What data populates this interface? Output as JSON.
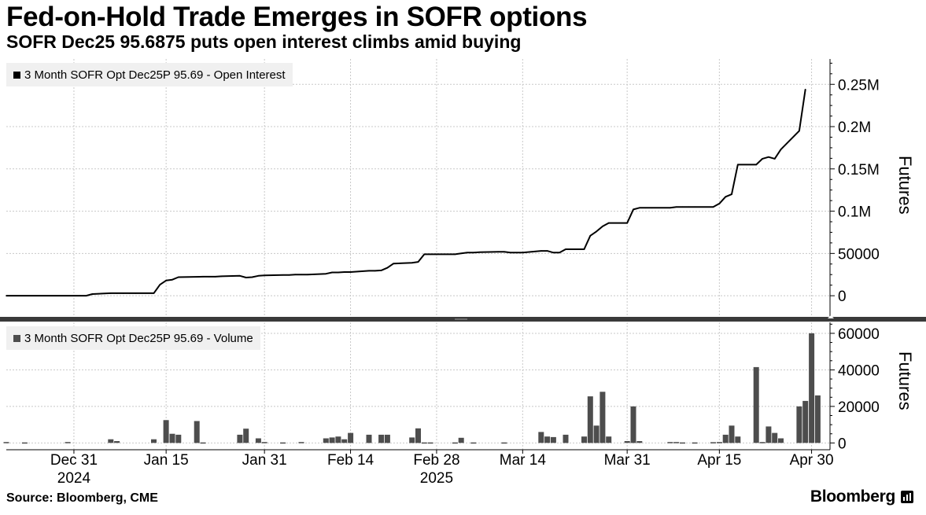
{
  "title": "Fed-on-Hold Trade Emerges in SOFR options",
  "subtitle": "SOFR Dec25 95.6875 puts open interest climbs amid buying",
  "source": "Source: Bloomberg, CME",
  "brand": "Bloomberg",
  "colors": {
    "oi_line": "#000000",
    "volume_bar": "#4d4d4d",
    "grid": "#c8c8c8",
    "legend_bg": "#f0f0f0",
    "separator": "#3a3a3a"
  },
  "chart_data": [
    {
      "type": "line",
      "name": "open-interest",
      "legend": "3 Month SOFR Opt Dec25P 95.69 - Open Interest",
      "ylabel": "Futures",
      "ylim": [
        -25000,
        280000
      ],
      "yticks": [
        0,
        50000,
        100000,
        150000,
        200000,
        250000
      ],
      "ytick_labels": [
        "0",
        "50000",
        "0.1M",
        "0.15M",
        "0.2M",
        "0.25M"
      ],
      "points": [
        [
          "2024-12-20",
          0
        ],
        [
          "2025-01-01",
          0
        ],
        [
          "2025-01-02",
          0
        ],
        [
          "2025-01-03",
          2000
        ],
        [
          "2025-01-06",
          3000
        ],
        [
          "2025-01-07",
          3000
        ],
        [
          "2025-01-08",
          3000
        ],
        [
          "2025-01-09",
          3000
        ],
        [
          "2025-01-10",
          3000
        ],
        [
          "2025-01-13",
          3000
        ],
        [
          "2025-01-14",
          13000
        ],
        [
          "2025-01-15",
          18000
        ],
        [
          "2025-01-16",
          19000
        ],
        [
          "2025-01-17",
          22000
        ],
        [
          "2025-01-21",
          22500
        ],
        [
          "2025-01-22",
          22500
        ],
        [
          "2025-01-23",
          22500
        ],
        [
          "2025-01-24",
          23000
        ],
        [
          "2025-01-27",
          23500
        ],
        [
          "2025-01-28",
          21500
        ],
        [
          "2025-01-29",
          22000
        ],
        [
          "2025-01-30",
          23500
        ],
        [
          "2025-01-31",
          24000
        ],
        [
          "2025-02-03",
          24500
        ],
        [
          "2025-02-04",
          24500
        ],
        [
          "2025-02-05",
          25000
        ],
        [
          "2025-02-06",
          25000
        ],
        [
          "2025-02-07",
          25000
        ],
        [
          "2025-02-10",
          26000
        ],
        [
          "2025-02-11",
          27500
        ],
        [
          "2025-02-12",
          27500
        ],
        [
          "2025-02-13",
          28000
        ],
        [
          "2025-02-14",
          28000
        ],
        [
          "2025-02-17",
          29500
        ],
        [
          "2025-02-18",
          29500
        ],
        [
          "2025-02-19",
          30000
        ],
        [
          "2025-02-20",
          33000
        ],
        [
          "2025-02-21",
          38000
        ],
        [
          "2025-02-24",
          39000
        ],
        [
          "2025-02-25",
          40000
        ],
        [
          "2025-02-26",
          49000
        ],
        [
          "2025-02-27",
          49000
        ],
        [
          "2025-02-28",
          49000
        ],
        [
          "2025-03-03",
          49000
        ],
        [
          "2025-03-04",
          50000
        ],
        [
          "2025-03-05",
          51000
        ],
        [
          "2025-03-06",
          51000
        ],
        [
          "2025-03-07",
          51500
        ],
        [
          "2025-03-10",
          52000
        ],
        [
          "2025-03-11",
          52000
        ],
        [
          "2025-03-12",
          51000
        ],
        [
          "2025-03-13",
          51000
        ],
        [
          "2025-03-14",
          51000
        ],
        [
          "2025-03-17",
          53000
        ],
        [
          "2025-03-18",
          53000
        ],
        [
          "2025-03-19",
          51000
        ],
        [
          "2025-03-20",
          51000
        ],
        [
          "2025-03-21",
          55000
        ],
        [
          "2025-03-24",
          55000
        ],
        [
          "2025-03-25",
          71000
        ],
        [
          "2025-03-26",
          76000
        ],
        [
          "2025-03-27",
          82000
        ],
        [
          "2025-03-28",
          86000
        ],
        [
          "2025-03-31",
          86000
        ],
        [
          "2025-04-01",
          102000
        ],
        [
          "2025-04-02",
          104000
        ],
        [
          "2025-04-03",
          104000
        ],
        [
          "2025-04-04",
          104000
        ],
        [
          "2025-04-07",
          104000
        ],
        [
          "2025-04-08",
          105000
        ],
        [
          "2025-04-09",
          105000
        ],
        [
          "2025-04-10",
          105000
        ],
        [
          "2025-04-11",
          105000
        ],
        [
          "2025-04-14",
          105000
        ],
        [
          "2025-04-15",
          109000
        ],
        [
          "2025-04-16",
          117000
        ],
        [
          "2025-04-17",
          120000
        ],
        [
          "2025-04-18",
          155000
        ],
        [
          "2025-04-21",
          155000
        ],
        [
          "2025-04-22",
          162000
        ],
        [
          "2025-04-23",
          164000
        ],
        [
          "2025-04-24",
          162000
        ],
        [
          "2025-04-25",
          173000
        ],
        [
          "2025-04-28",
          195000
        ],
        [
          "2025-04-29",
          244000
        ]
      ]
    },
    {
      "type": "bar",
      "name": "volume",
      "legend": "3 Month SOFR Opt Dec25P 95.69 - Volume",
      "ylabel": "Futures",
      "ylim": [
        -2000,
        66000
      ],
      "yticks": [
        0,
        20000,
        40000,
        60000
      ],
      "ytick_labels": [
        "0",
        "20000",
        "40000",
        "60000"
      ],
      "points": [
        [
          "2024-12-20",
          500
        ],
        [
          "2024-12-23",
          300
        ],
        [
          "2024-12-30",
          500
        ],
        [
          "2025-01-06",
          2000
        ],
        [
          "2025-01-07",
          1000
        ],
        [
          "2025-01-13",
          2000
        ],
        [
          "2025-01-15",
          12500
        ],
        [
          "2025-01-16",
          5000
        ],
        [
          "2025-01-17",
          4500
        ],
        [
          "2025-01-20",
          12000
        ],
        [
          "2025-01-21",
          300
        ],
        [
          "2025-01-27",
          4500
        ],
        [
          "2025-01-28",
          7800
        ],
        [
          "2025-01-30",
          2500
        ],
        [
          "2025-01-31",
          500
        ],
        [
          "2025-02-03",
          300
        ],
        [
          "2025-02-06",
          500
        ],
        [
          "2025-02-10",
          2500
        ],
        [
          "2025-02-11",
          3000
        ],
        [
          "2025-02-12",
          3500
        ],
        [
          "2025-02-13",
          2000
        ],
        [
          "2025-02-14",
          5500
        ],
        [
          "2025-02-17",
          4500
        ],
        [
          "2025-02-19",
          4500
        ],
        [
          "2025-02-20",
          4500
        ],
        [
          "2025-02-24",
          3000
        ],
        [
          "2025-02-25",
          8000
        ],
        [
          "2025-02-26",
          300
        ],
        [
          "2025-02-27",
          300
        ],
        [
          "2025-03-03",
          300
        ],
        [
          "2025-03-04",
          2800
        ],
        [
          "2025-03-06",
          300
        ],
        [
          "2025-03-11",
          300
        ],
        [
          "2025-03-17",
          6000
        ],
        [
          "2025-03-18",
          3500
        ],
        [
          "2025-03-19",
          3200
        ],
        [
          "2025-03-21",
          4500
        ],
        [
          "2025-03-24",
          3500
        ],
        [
          "2025-03-25",
          25500
        ],
        [
          "2025-03-26",
          9500
        ],
        [
          "2025-03-27",
          28000
        ],
        [
          "2025-03-28",
          3500
        ],
        [
          "2025-03-31",
          1000
        ],
        [
          "2025-04-01",
          20000
        ],
        [
          "2025-04-02",
          1000
        ],
        [
          "2025-04-07",
          500
        ],
        [
          "2025-04-08",
          500
        ],
        [
          "2025-04-09",
          300
        ],
        [
          "2025-04-11",
          300
        ],
        [
          "2025-04-14",
          400
        ],
        [
          "2025-04-15",
          500
        ],
        [
          "2025-04-16",
          4500
        ],
        [
          "2025-04-17",
          9500
        ],
        [
          "2025-04-18",
          3500
        ],
        [
          "2025-04-21",
          41500
        ],
        [
          "2025-04-22",
          500
        ],
        [
          "2025-04-23",
          9000
        ],
        [
          "2025-04-24",
          5500
        ],
        [
          "2025-04-25",
          2500
        ],
        [
          "2025-04-28",
          20000
        ],
        [
          "2025-04-29",
          23000
        ],
        [
          "2025-04-30",
          60000
        ],
        [
          "2025-05-01",
          26000
        ]
      ]
    }
  ],
  "x_axis": {
    "range": [
      "2024-12-20",
      "2025-05-03"
    ],
    "ticks": [
      {
        "date": "2024-12-31",
        "label": "Dec 31"
      },
      {
        "date": "2025-01-15",
        "label": "Jan 15"
      },
      {
        "date": "2025-01-31",
        "label": "Jan 31"
      },
      {
        "date": "2025-02-14",
        "label": "Feb 14"
      },
      {
        "date": "2025-02-28",
        "label": "Feb 28"
      },
      {
        "date": "2025-03-14",
        "label": "Mar 14"
      },
      {
        "date": "2025-03-31",
        "label": "Mar 31"
      },
      {
        "date": "2025-04-15",
        "label": "Apr 15"
      },
      {
        "date": "2025-04-30",
        "label": "Apr 30"
      }
    ],
    "year_labels": [
      {
        "date": "2024-12-31",
        "label": "2024"
      },
      {
        "date": "2025-02-28",
        "label": "2025"
      }
    ]
  }
}
